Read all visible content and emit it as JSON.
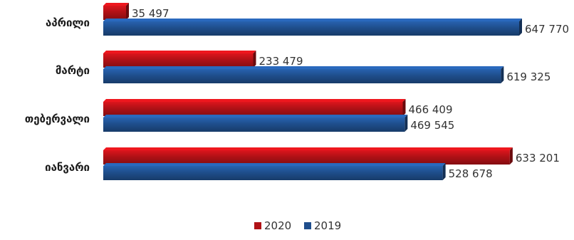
{
  "chart_data": {
    "type": "bar",
    "orientation": "horizontal",
    "style": "3d",
    "categories": [
      "აპრილი",
      "მარტი",
      "თებერვალი",
      "იანვარი"
    ],
    "series": [
      {
        "name": "2020",
        "color": "#b01116",
        "values": [
          35497,
          233479,
          466409,
          633201
        ],
        "labels": [
          "35 497",
          "233 479",
          "466 409",
          "633 201"
        ]
      },
      {
        "name": "2019",
        "color": "#1f4e8c",
        "values": [
          647770,
          619325,
          469545,
          528678
        ],
        "labels": [
          "647 770",
          "619 325",
          "469 545",
          "528 678"
        ]
      }
    ],
    "xlim": [
      0,
      700000
    ],
    "grid": false,
    "legend_position": "bottom",
    "title": "",
    "xlabel": "",
    "ylabel": ""
  }
}
